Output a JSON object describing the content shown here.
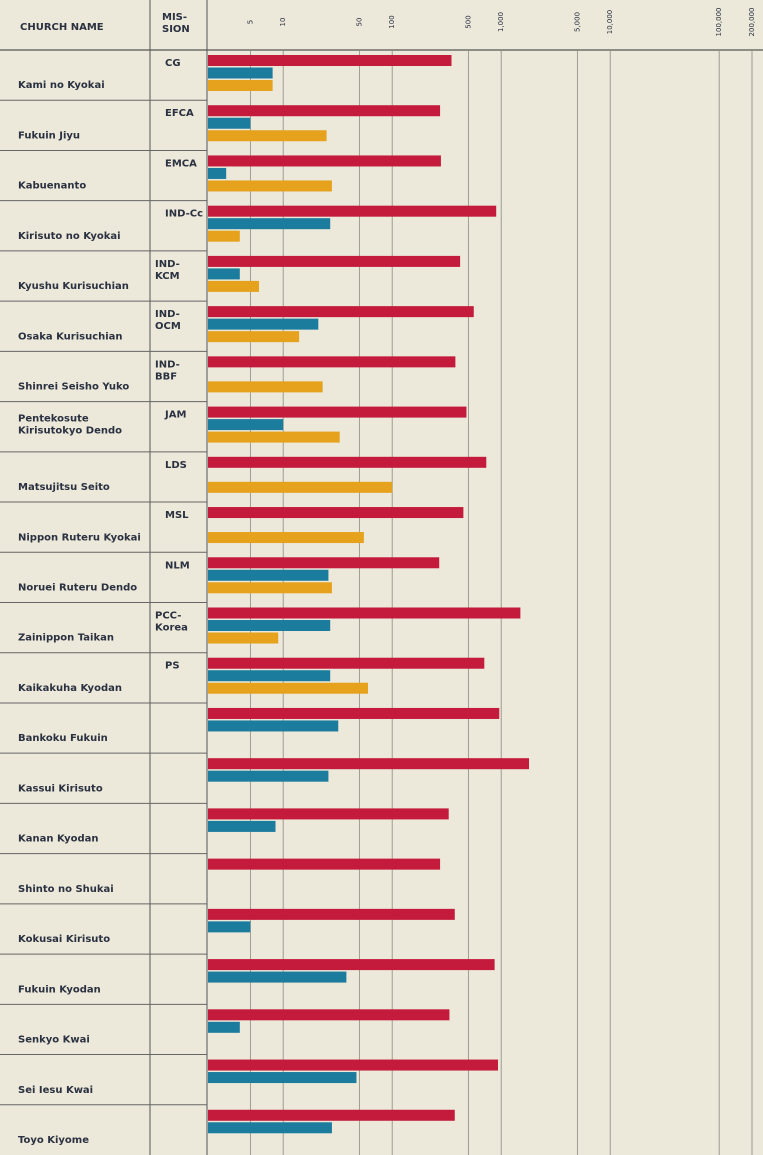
{
  "chart_data": {
    "type": "bar",
    "orientation": "horizontal",
    "columns": [
      "CHURCH NAME",
      "MIS-\nSION"
    ],
    "categories": [
      "Kami no Kyokai",
      "Fukuin Jiyu",
      "Kabuenanto",
      "Kirisuto no Kyokai",
      "Kyushu Kurisuchian",
      "Osaka Kurisuchian",
      "Shinrei Seisho Yuko",
      "Pentekosute\nKirisutokyo Dendo",
      "Matsujitsu Seito",
      "Nippon Ruteru Kyokai",
      "Noruei Ruteru Dendo",
      "Zainippon Taikan",
      "Kaikakuha Kyodan",
      "Bankoku Fukuin",
      "Kassui Kirisuto",
      "Kanan Kyodan",
      "Shinto no Shukai",
      "Kokusai Kirisuto",
      "Fukuin Kyodan",
      "Senkyo Kwai",
      "Sei Iesu Kwai",
      "Toyo Kiyome"
    ],
    "missions": [
      "CG",
      "EFCA",
      "EMCA",
      "IND-Cc",
      "IND-\nKCM",
      "IND-\nOCM",
      "IND-\nBBF",
      "JAM",
      "LDS",
      "MSL",
      "NLM",
      "PCC-\nKorea",
      "PS",
      null,
      null,
      null,
      null,
      null,
      null,
      null,
      null,
      null
    ],
    "series": [
      {
        "color": "#c41a3b",
        "values": [
          350,
          275,
          280,
          900,
          420,
          560,
          380,
          480,
          730,
          450,
          270,
          1500,
          700,
          960,
          1800,
          330,
          275,
          375,
          870,
          335,
          935,
          375
        ]
      },
      {
        "color": "#1b7c9e",
        "values": [
          8,
          5,
          3,
          27,
          4,
          21,
          null,
          10,
          null,
          null,
          26,
          27,
          27,
          32,
          26,
          8.5,
          null,
          5,
          38,
          4,
          47,
          28
        ]
      },
      {
        "color": "#e6a21c",
        "values": [
          8,
          25,
          28,
          4,
          6,
          14,
          23,
          33,
          100,
          55,
          28,
          9,
          60,
          null,
          null,
          null,
          null,
          null,
          null,
          null,
          null,
          null
        ]
      }
    ],
    "xscale": "log",
    "xlim": [
      2,
      200000
    ],
    "xticks": [
      5,
      10,
      50,
      100,
      500,
      {
        "value": 1000,
        "label": "1,000"
      },
      {
        "value": 5000,
        "label": "5,000"
      },
      {
        "value": 10000,
        "label": "10,000"
      },
      {
        "value": 100000,
        "label": "100,000"
      },
      {
        "value": 200000,
        "label": "200,000"
      }
    ],
    "grid": true
  }
}
